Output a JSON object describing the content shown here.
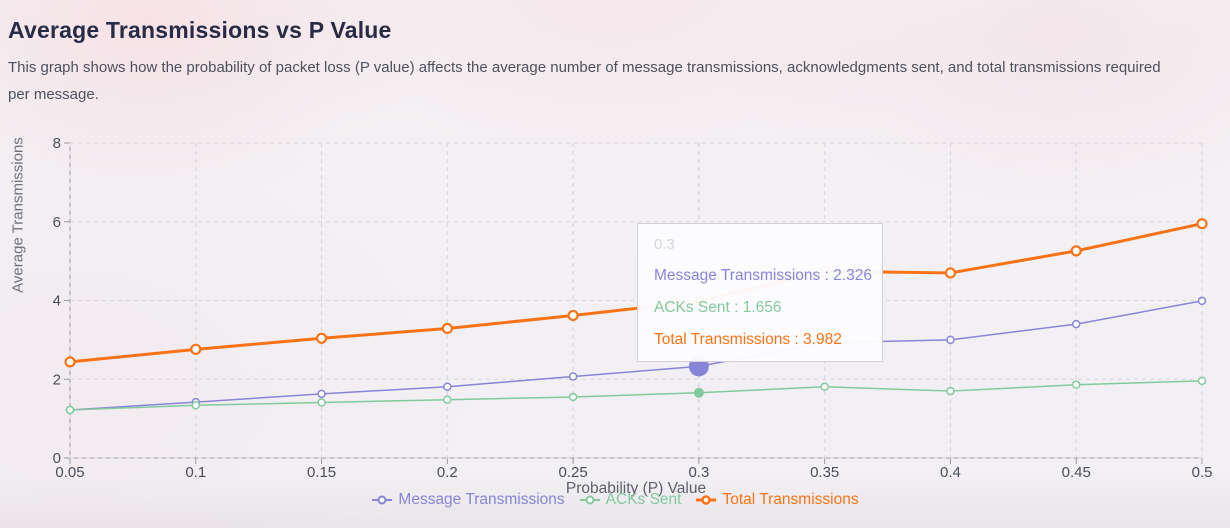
{
  "header": {
    "title": "Average Transmissions vs P Value",
    "description": "This graph shows how the probability of packet loss (P value) affects the average number of message transmissions, acknowledgments sent, and total transmissions required per message."
  },
  "chart_data": {
    "type": "line",
    "title": "Average Transmissions vs P Value",
    "xlabel": "Probability (P) Value",
    "ylabel": "Average Transmissions",
    "x": [
      0.05,
      0.1,
      0.15,
      0.2,
      0.25,
      0.3,
      0.35,
      0.4,
      0.45,
      0.5
    ],
    "x_tick_labels": [
      "0.05",
      "0.1",
      "0.15",
      "0.2",
      "0.25",
      "0.3",
      "0.35",
      "0.4",
      "0.45",
      "0.5"
    ],
    "y_ticks": [
      0,
      2,
      4,
      6,
      8
    ],
    "xlim": [
      0.05,
      0.5
    ],
    "ylim": [
      0,
      8
    ],
    "grid": "dashed",
    "legend_position": "bottom",
    "series": [
      {
        "name": "Message Transmissions",
        "color": "#8884d8",
        "stroke_width": 1.5,
        "marker_radius": 3.5,
        "values": [
          1.22,
          1.42,
          1.63,
          1.81,
          2.07,
          2.326,
          2.93,
          3.0,
          3.4,
          3.99
        ]
      },
      {
        "name": "ACKs Sent",
        "color": "#82ca9d",
        "stroke_width": 1.5,
        "marker_radius": 3.5,
        "values": [
          1.22,
          1.34,
          1.41,
          1.48,
          1.55,
          1.656,
          1.81,
          1.7,
          1.86,
          1.96
        ]
      },
      {
        "name": "Total Transmissions",
        "color": "#f97316",
        "stroke_width": 3,
        "marker_radius": 4.5,
        "values": [
          2.44,
          2.76,
          3.04,
          3.29,
          3.62,
          3.982,
          4.74,
          4.7,
          5.26,
          5.95
        ]
      }
    ]
  },
  "tooltip": {
    "x_value": "0.3",
    "separator": " : ",
    "rows": [
      {
        "name": "Message Transmissions",
        "value": "2.326",
        "color": "#8884d8"
      },
      {
        "name": "ACKs Sent",
        "value": "1.656",
        "color": "#82ca9d"
      },
      {
        "name": "Total Transmissions",
        "value": "3.982",
        "color": "#f97316"
      }
    ]
  },
  "active_point": {
    "x": 0.3,
    "dots": [
      {
        "series": "Message Transmissions",
        "radius": 10
      },
      {
        "series": "ACKs Sent",
        "radius": 5
      },
      {
        "series": "Total Transmissions",
        "radius": 5
      }
    ]
  },
  "theme": {
    "title_color": "#272c44",
    "description_color": "#4c515c",
    "axis_color": "#9a98a0",
    "grid_color": "#d6d3da",
    "cursor_color": "#cbc8d0",
    "tick_label_color": "#4a4f5a",
    "axis_label_color": "#5d616c",
    "tooltip_background": "rgba(252,251,253,0.97)",
    "tooltip_border": "#d4d0da",
    "tooltip_label_color": "#d9d4de",
    "marker_fill": "#ffffff"
  }
}
